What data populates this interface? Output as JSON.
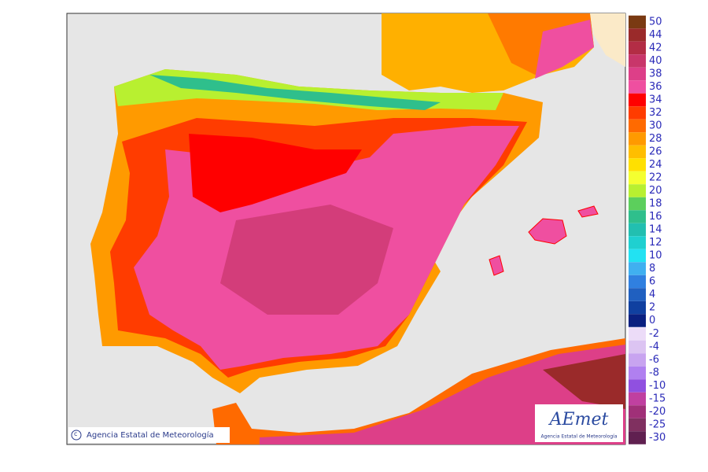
{
  "credit": "Agencia Estatal de Meteorología",
  "logo": {
    "brand": "AEmet",
    "subtitle": "Agencia Estatal de Meteorología"
  },
  "legend": {
    "positive": [
      {
        "value": 50,
        "color": "#7a3a12"
      },
      {
        "value": 44,
        "color": "#9a2a2a"
      },
      {
        "value": 42,
        "color": "#b32d45"
      },
      {
        "value": 40,
        "color": "#c8366a"
      },
      {
        "value": 38,
        "color": "#dd3f88"
      },
      {
        "value": 36,
        "color": "#ef4fa0"
      },
      {
        "value": 34,
        "color": "#ff0000"
      },
      {
        "value": 32,
        "color": "#ff3c00"
      },
      {
        "value": 30,
        "color": "#ff6a00"
      },
      {
        "value": 28,
        "color": "#ff9a00"
      },
      {
        "value": 26,
        "color": "#ffbe00"
      },
      {
        "value": 24,
        "color": "#ffe000"
      },
      {
        "value": 22,
        "color": "#f4ff30"
      },
      {
        "value": 20,
        "color": "#b8f030"
      },
      {
        "value": 18,
        "color": "#5ccf5c"
      },
      {
        "value": 16,
        "color": "#2fbf8c"
      },
      {
        "value": 14,
        "color": "#22bfb0"
      },
      {
        "value": 12,
        "color": "#1fd0d0"
      },
      {
        "value": 10,
        "color": "#22e2f2"
      },
      {
        "value": 8,
        "color": "#40b0f0"
      },
      {
        "value": 6,
        "color": "#3080e0"
      },
      {
        "value": 4,
        "color": "#2060c0"
      },
      {
        "value": 2,
        "color": "#1040a0"
      },
      {
        "value": 0,
        "color": "#0a2080"
      }
    ],
    "negative": [
      {
        "value": -2,
        "color": "#ecdcf8"
      },
      {
        "value": -4,
        "color": "#dcc4f2"
      },
      {
        "value": -6,
        "color": "#c8a4f0"
      },
      {
        "value": -8,
        "color": "#b080f0"
      },
      {
        "value": -10,
        "color": "#9050e0"
      },
      {
        "value": -15,
        "color": "#c040a0"
      },
      {
        "value": -20,
        "color": "#a03078"
      },
      {
        "value": -25,
        "color": "#803060"
      },
      {
        "value": -30,
        "color": "#602050"
      }
    ]
  }
}
